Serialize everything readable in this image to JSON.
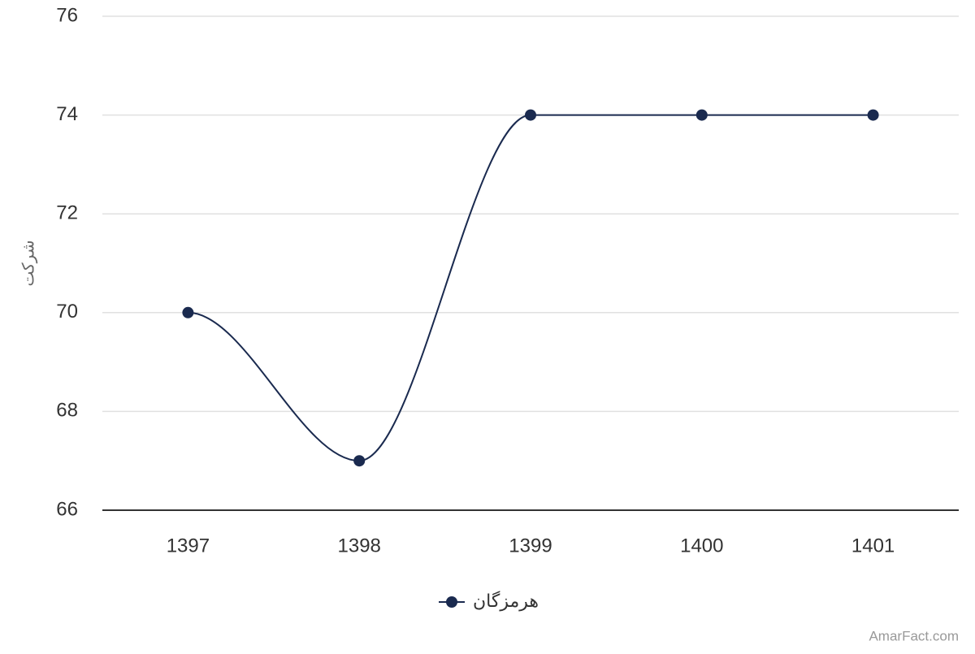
{
  "chart_data": {
    "type": "line",
    "y_label": "شرکت",
    "categories": [
      "1397",
      "1398",
      "1399",
      "1400",
      "1401"
    ],
    "series": [
      {
        "name": "هرمزگان",
        "color": "#1a2a4f",
        "values": [
          70,
          67,
          74,
          74,
          74
        ]
      }
    ],
    "ylim": [
      66,
      76
    ],
    "yticks": [
      66,
      68,
      70,
      72,
      74,
      76
    ],
    "grid": true,
    "smooth": true,
    "legend": "bottom",
    "credit": "AmarFact.com"
  }
}
